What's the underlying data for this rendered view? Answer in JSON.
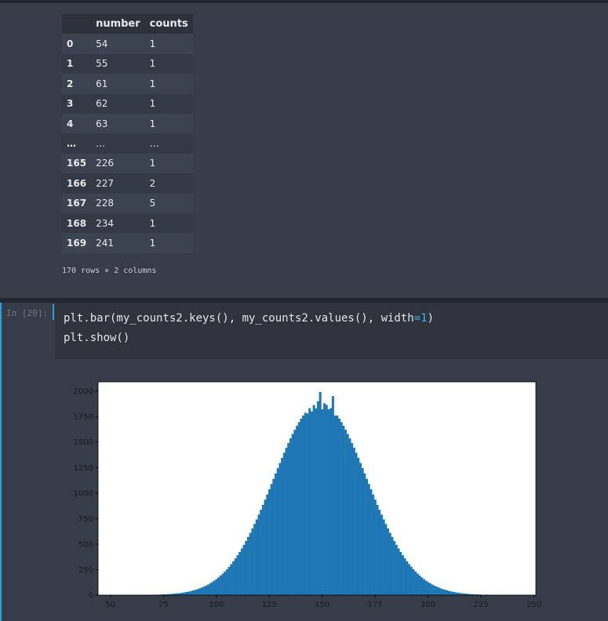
{
  "notebook": {
    "table": {
      "columns": [
        "number",
        "counts"
      ],
      "rows": [
        [
          "0",
          "54",
          "1"
        ],
        [
          "1",
          "55",
          "1"
        ],
        [
          "2",
          "61",
          "1"
        ],
        [
          "3",
          "62",
          "1"
        ],
        [
          "4",
          "63",
          "1"
        ],
        [
          "…",
          "…",
          "…"
        ],
        [
          "165",
          "226",
          "1"
        ],
        [
          "166",
          "227",
          "2"
        ],
        [
          "167",
          "228",
          "5"
        ],
        [
          "168",
          "234",
          "1"
        ],
        [
          "169",
          "241",
          "1"
        ]
      ]
    },
    "footer": "170 rows × 2 columns",
    "prompt": "In [20]:",
    "code": [
      [
        "plt.bar(my_counts2.keys(), my_counts2.values(), width",
        "=1",
        ")"
      ],
      [
        "plt.show()"
      ]
    ]
  },
  "chart_data": {
    "type": "bar",
    "color": "#1f77b4",
    "bar_width": 1,
    "x": [
      54,
      55,
      61,
      62,
      63,
      66,
      67,
      68,
      69,
      70,
      71,
      72,
      73,
      74,
      75,
      76,
      77,
      78,
      79,
      80,
      81,
      82,
      83,
      84,
      85,
      86,
      87,
      88,
      89,
      90,
      91,
      92,
      93,
      94,
      95,
      96,
      97,
      98,
      99,
      100,
      101,
      102,
      103,
      104,
      105,
      106,
      107,
      108,
      109,
      110,
      111,
      112,
      113,
      114,
      115,
      116,
      117,
      118,
      119,
      120,
      121,
      122,
      123,
      124,
      125,
      126,
      127,
      128,
      129,
      130,
      131,
      132,
      133,
      134,
      135,
      136,
      137,
      138,
      139,
      140,
      141,
      142,
      143,
      144,
      145,
      146,
      147,
      148,
      149,
      150,
      151,
      152,
      153,
      154,
      155,
      156,
      157,
      158,
      159,
      160,
      161,
      162,
      163,
      164,
      165,
      166,
      167,
      168,
      169,
      170,
      171,
      172,
      173,
      174,
      175,
      176,
      177,
      178,
      179,
      180,
      181,
      182,
      183,
      184,
      185,
      186,
      187,
      188,
      189,
      190,
      191,
      192,
      193,
      194,
      195,
      196,
      197,
      198,
      199,
      200,
      201,
      202,
      203,
      204,
      205,
      206,
      207,
      208,
      209,
      210,
      211,
      212,
      213,
      214,
      215,
      216,
      217,
      218,
      219,
      220,
      221,
      222,
      223,
      224,
      225,
      226,
      227,
      228,
      234,
      241
    ],
    "values": [
      1,
      1,
      1,
      1,
      1,
      2,
      2,
      2,
      3,
      3,
      4,
      4,
      5,
      6,
      7,
      8,
      9,
      10,
      12,
      14,
      16,
      18,
      21,
      24,
      27,
      31,
      35,
      40,
      46,
      52,
      58,
      66,
      74,
      83,
      92,
      103,
      115,
      128,
      142,
      157,
      174,
      192,
      211,
      232,
      254,
      278,
      304,
      331,
      360,
      391,
      423,
      457,
      493,
      530,
      570,
      610,
      653,
      697,
      742,
      789,
      836,
      885,
      935,
      986,
      1037,
      1089,
      1140,
      1192,
      1244,
      1295,
      1345,
      1395,
      1443,
      1490,
      1535,
      1579,
      1620,
      1659,
      1695,
      1729,
      1760,
      1787,
      1780,
      1832,
      1800,
      1863,
      1830,
      1900,
      1990,
      1820,
      1880,
      1863,
      1820,
      1832,
      1950,
      1760,
      1760,
      1729,
      1695,
      1659,
      1620,
      1579,
      1535,
      1490,
      1443,
      1395,
      1345,
      1295,
      1244,
      1192,
      1140,
      1089,
      1037,
      986,
      935,
      885,
      836,
      789,
      742,
      697,
      653,
      610,
      570,
      530,
      493,
      457,
      423,
      391,
      360,
      331,
      304,
      278,
      254,
      232,
      211,
      192,
      174,
      157,
      142,
      128,
      115,
      103,
      92,
      83,
      74,
      66,
      58,
      52,
      46,
      40,
      35,
      31,
      27,
      24,
      21,
      18,
      16,
      14,
      12,
      10,
      9,
      8,
      7,
      6,
      5,
      1,
      2,
      5,
      1,
      1
    ],
    "xlim": [
      44.1,
      250.9
    ],
    "ylim": [
      0,
      2089.5
    ],
    "xticks": [
      50,
      75,
      100,
      125,
      150,
      175,
      200,
      225,
      250
    ],
    "yticks": [
      0,
      250,
      500,
      750,
      1000,
      1250,
      1500,
      1750,
      2000
    ]
  }
}
